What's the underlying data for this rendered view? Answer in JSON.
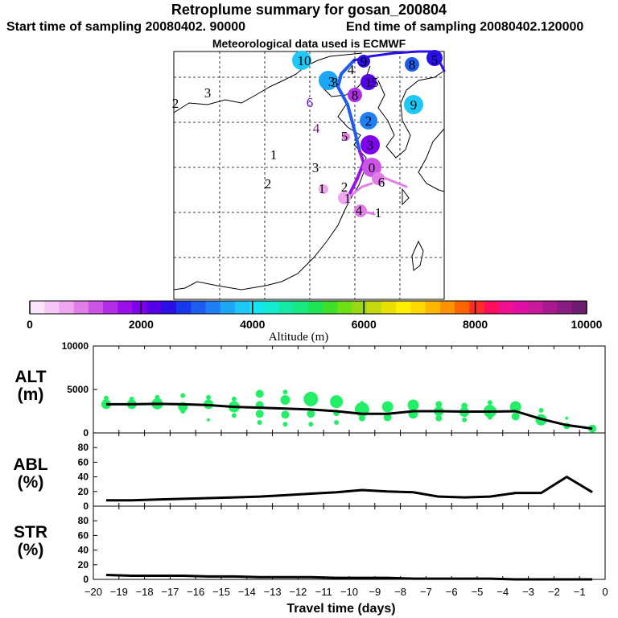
{
  "header": {
    "title": "Retroplume summary for gosan_200804",
    "start_time": "Start time of sampling 20080402. 90000",
    "end_time": "End time of sampling 20080402.120000",
    "met_data": "Meteorological data used is ECMWF"
  },
  "colorbar": {
    "ticks": [
      "0",
      "2000",
      "4000",
      "6000",
      "8000",
      "10000"
    ],
    "label": "Altitude (m)",
    "colors": [
      "#fde4fd",
      "#f6c6f6",
      "#eea6ee",
      "#e27ee8",
      "#cc55e6",
      "#b22ee6",
      "#9910ea",
      "#7d00ee",
      "#5400e6",
      "#2a10e6",
      "#1838ee",
      "#1e5cf0",
      "#1e80f4",
      "#1ea6f6",
      "#1ec8f6",
      "#14e4f0",
      "#14ecd0",
      "#14eaa6",
      "#18e880",
      "#20e458",
      "#40e028",
      "#6ee014",
      "#9ad814",
      "#c6d80e",
      "#e8e000",
      "#fff000",
      "#ffd800",
      "#ffb600",
      "#ff9200",
      "#ff6400",
      "#ff2e28",
      "#ff0e5e",
      "#f01090",
      "#e010a4",
      "#c8189c",
      "#a81890",
      "#881c80",
      "#6e1c6e"
    ]
  },
  "chart_data": [
    {
      "type": "scatter",
      "title": "",
      "ylabel": "ALT (m)",
      "label_line1": "ALT",
      "label_line2": "(m)",
      "ylim": [
        0,
        10000
      ],
      "yticks": [
        "10000",
        "5000",
        "0"
      ],
      "line_x": [
        -19.5,
        -18.5,
        -17.5,
        -16.5,
        -15.5,
        -14.5,
        -13.5,
        -12.5,
        -11.5,
        -10.5,
        -9.5,
        -8.5,
        -7.5,
        -6.5,
        -5.5,
        -4.5,
        -3.5,
        -2.5,
        -1.5,
        -0.5
      ],
      "line_y": [
        3300,
        3300,
        3350,
        3300,
        3200,
        3000,
        2900,
        2800,
        2700,
        2500,
        2200,
        2200,
        2500,
        2500,
        2450,
        2450,
        2500,
        1600,
        900,
        500
      ],
      "dots": [
        {
          "x": -19.5,
          "y": 3300,
          "r": 6
        },
        {
          "x": -19.5,
          "y": 4000,
          "r": 3
        },
        {
          "x": -18.5,
          "y": 3300,
          "r": 6
        },
        {
          "x": -18.5,
          "y": 3900,
          "r": 3
        },
        {
          "x": -17.5,
          "y": 3350,
          "r": 7
        },
        {
          "x": -17.5,
          "y": 4100,
          "r": 3
        },
        {
          "x": -16.5,
          "y": 3000,
          "r": 6
        },
        {
          "x": -16.5,
          "y": 4300,
          "r": 3
        },
        {
          "x": -16.5,
          "y": 2500,
          "r": 3
        },
        {
          "x": -15.5,
          "y": 3300,
          "r": 6
        },
        {
          "x": -15.5,
          "y": 4100,
          "r": 3
        },
        {
          "x": -15.5,
          "y": 1500,
          "r": 2
        },
        {
          "x": -14.5,
          "y": 3000,
          "r": 7
        },
        {
          "x": -14.5,
          "y": 3900,
          "r": 3
        },
        {
          "x": -14.5,
          "y": 2000,
          "r": 3
        },
        {
          "x": -13.5,
          "y": 4500,
          "r": 5
        },
        {
          "x": -13.5,
          "y": 3200,
          "r": 5
        },
        {
          "x": -13.5,
          "y": 2200,
          "r": 5
        },
        {
          "x": -13.5,
          "y": 1200,
          "r": 3
        },
        {
          "x": -12.5,
          "y": 4700,
          "r": 3
        },
        {
          "x": -12.5,
          "y": 3800,
          "r": 6
        },
        {
          "x": -12.5,
          "y": 2100,
          "r": 5
        },
        {
          "x": -12.5,
          "y": 1000,
          "r": 3
        },
        {
          "x": -11.5,
          "y": 3900,
          "r": 9
        },
        {
          "x": -11.5,
          "y": 2200,
          "r": 5
        },
        {
          "x": -11.5,
          "y": 1000,
          "r": 3
        },
        {
          "x": -10.5,
          "y": 3600,
          "r": 8
        },
        {
          "x": -10.5,
          "y": 2300,
          "r": 4
        },
        {
          "x": -10.5,
          "y": 1200,
          "r": 3
        },
        {
          "x": -9.5,
          "y": 3500,
          "r": 2
        },
        {
          "x": -9.5,
          "y": 2700,
          "r": 9
        },
        {
          "x": -9.5,
          "y": 1700,
          "r": 4
        },
        {
          "x": -8.5,
          "y": 3000,
          "r": 7
        },
        {
          "x": -8.5,
          "y": 1800,
          "r": 5
        },
        {
          "x": -7.5,
          "y": 3200,
          "r": 7
        },
        {
          "x": -7.5,
          "y": 2200,
          "r": 6
        },
        {
          "x": -6.5,
          "y": 3300,
          "r": 4
        },
        {
          "x": -6.5,
          "y": 2500,
          "r": 6
        },
        {
          "x": -6.5,
          "y": 1700,
          "r": 4
        },
        {
          "x": -5.5,
          "y": 3100,
          "r": 4
        },
        {
          "x": -5.5,
          "y": 2400,
          "r": 6
        },
        {
          "x": -5.5,
          "y": 1500,
          "r": 3
        },
        {
          "x": -4.5,
          "y": 2500,
          "r": 8
        },
        {
          "x": -4.5,
          "y": 3500,
          "r": 3
        },
        {
          "x": -4.5,
          "y": 1800,
          "r": 3
        },
        {
          "x": -3.5,
          "y": 3000,
          "r": 7
        },
        {
          "x": -3.5,
          "y": 1900,
          "r": 5
        },
        {
          "x": -2.5,
          "y": 1500,
          "r": 7
        },
        {
          "x": -2.5,
          "y": 2600,
          "r": 3
        },
        {
          "x": -1.5,
          "y": 1700,
          "r": 2
        },
        {
          "x": -1.5,
          "y": 800,
          "r": 4
        },
        {
          "x": -0.5,
          "y": 500,
          "r": 5
        }
      ],
      "dot_color": "#22ee66"
    },
    {
      "type": "line",
      "ylabel": "ABL (%)",
      "label_line1": "ABL",
      "label_line2": "(%)",
      "ylim": [
        0,
        100
      ],
      "yticks": [
        "80",
        "60",
        "40",
        "20",
        "0"
      ],
      "x": [
        -19.5,
        -18.5,
        -17.5,
        -16.5,
        -15.5,
        -14.5,
        -13.5,
        -12.5,
        -11.5,
        -10.5,
        -9.5,
        -8.5,
        -7.5,
        -6.5,
        -5.5,
        -4.5,
        -3.5,
        -2.5,
        -1.5,
        -0.5
      ],
      "y": [
        8,
        8,
        9,
        10,
        11,
        12,
        13,
        15,
        17,
        19,
        22,
        20,
        19,
        13,
        12,
        13,
        18,
        18,
        40,
        19
      ]
    },
    {
      "type": "line",
      "ylabel": "STR (%)",
      "label_line1": "STR",
      "label_line2": "(%)",
      "ylim": [
        0,
        100
      ],
      "yticks": [
        "80",
        "60",
        "40",
        "20",
        "0"
      ],
      "xlabel": "Travel time (days)",
      "xticks": [
        "-20",
        "-19",
        "-18",
        "-17",
        "-16",
        "-15",
        "-14",
        "-13",
        "-12",
        "-11",
        "-10",
        "-9",
        "-8",
        "-7",
        "-6",
        "-5",
        "-4",
        "-3",
        "-2",
        "-1",
        "0"
      ],
      "x": [
        -19.5,
        -18.5,
        -17.5,
        -16.5,
        -15.5,
        -14.5,
        -13.5,
        -12.5,
        -11.5,
        -10.5,
        -9.5,
        -8.5,
        -7.5,
        -6.5,
        -5.5,
        -4.5,
        -3.5,
        -2.5,
        -1.5,
        -0.5
      ],
      "y": [
        6,
        5,
        5,
        5,
        4,
        4,
        3,
        3,
        3,
        2,
        2,
        2,
        1,
        1,
        1,
        1,
        0,
        0,
        0,
        0
      ]
    }
  ],
  "map": {
    "labels": [
      {
        "text": "10",
        "color": "#000000"
      },
      {
        "text": "3",
        "color": "#000000"
      },
      {
        "text": "2",
        "color": "#000000"
      },
      {
        "text": "3",
        "color": "#000000"
      },
      {
        "text": "6",
        "color": "#5b0ad8"
      },
      {
        "text": "4",
        "color": "#6e1c6e"
      },
      {
        "text": "1",
        "color": "#000000"
      },
      {
        "text": "3",
        "color": "#000000"
      },
      {
        "text": "2",
        "color": "#000000"
      },
      {
        "text": "1",
        "color": "#000000"
      },
      {
        "text": "5",
        "color": "#000000"
      },
      {
        "text": "2",
        "color": "#000000"
      },
      {
        "text": "1",
        "color": "#000000"
      },
      {
        "text": "4",
        "color": "#000000"
      },
      {
        "text": "1",
        "color": "#000000"
      },
      {
        "text": "4",
        "color": "#000000"
      },
      {
        "text": "9",
        "color": "#000000"
      },
      {
        "text": "15",
        "color": "#000000"
      },
      {
        "text": "8",
        "color": "#000000"
      },
      {
        "text": "9",
        "color": "#000000"
      },
      {
        "text": "2",
        "color": "#000000"
      },
      {
        "text": "3",
        "color": "#000000"
      },
      {
        "text": "0",
        "color": "#000000"
      },
      {
        "text": "6",
        "color": "#000000"
      },
      {
        "text": "8",
        "color": "#000000"
      },
      {
        "text": "5",
        "color": "#000000"
      },
      {
        "text": "3",
        "color": "#000000"
      }
    ]
  }
}
